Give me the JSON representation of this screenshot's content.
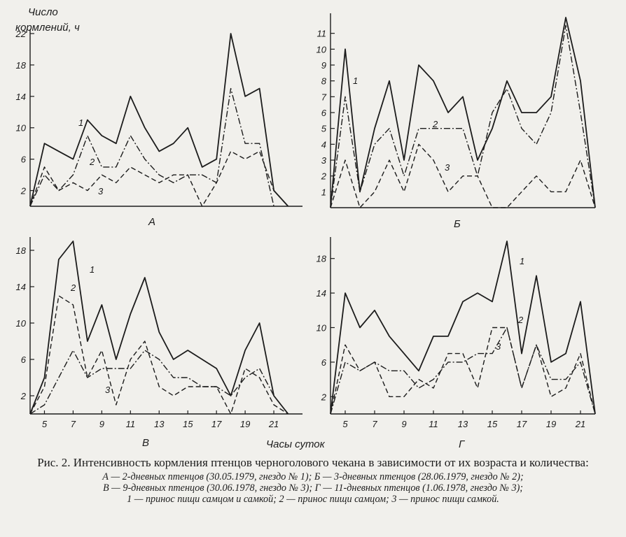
{
  "figure": {
    "y_axis_label_line1": "Число",
    "y_axis_label_line2": "кормлений, ч",
    "x_axis_label": "Часы суток",
    "caption_title": "Рис. 2. Интенсивность кормления птенцов черноголового чекана в зависимости от их возраста и количества:",
    "caption_lines": [
      "А — 2-дневных птенцов (30.05.1979, гнездо № 1); Б — 3-дневных птенцов (28.06.1979, гнездо № 2);",
      "В — 9-дневных птенцов (30.06.1978, гнездо № 3); Г — 11-дневных птенцов (1.06.1978, гнездо № 3);",
      "1 — принос пищи самцом и самкой; 2 — принос пищи самцом; 3 — принос пищи самкой."
    ]
  },
  "chart_data": [
    {
      "type": "line",
      "panel_label": "А",
      "ylim": [
        0,
        22
      ],
      "y_ticks": [
        "2",
        "6",
        "10",
        "14",
        "18",
        "22"
      ],
      "x_ticks": [],
      "x": [
        4,
        5,
        6,
        7,
        8,
        9,
        10,
        11,
        12,
        13,
        14,
        15,
        16,
        17,
        18,
        19,
        20,
        21,
        22,
        23
      ],
      "series": [
        {
          "name": "1",
          "style": "solid",
          "values": [
            0,
            8,
            7,
            6,
            11,
            9,
            8,
            14,
            10,
            7,
            8,
            10,
            5,
            6,
            22,
            14,
            15,
            2,
            0,
            null
          ]
        },
        {
          "name": "2",
          "style": "dashdot",
          "values": [
            0,
            4,
            2,
            4,
            9,
            5,
            5,
            9,
            6,
            4,
            3,
            4,
            4,
            3,
            15,
            8,
            8,
            0,
            null,
            null
          ]
        },
        {
          "name": "3",
          "style": "dashed",
          "values": [
            0,
            5,
            2,
            3,
            2,
            4,
            3,
            5,
            4,
            3,
            4,
            4,
            0,
            3,
            7,
            6,
            7,
            2,
            0,
            null
          ]
        }
      ]
    },
    {
      "type": "line",
      "panel_label": "Б",
      "ylim": [
        0,
        12
      ],
      "y_ticks": [
        "1",
        "2",
        "3",
        "4",
        "5",
        "6",
        "7",
        "8",
        "9",
        "10",
        "11"
      ],
      "x_ticks": [],
      "x": [
        4,
        5,
        6,
        7,
        8,
        9,
        10,
        11,
        12,
        13,
        14,
        15,
        16,
        17,
        18,
        19,
        20,
        21,
        22
      ],
      "series": [
        {
          "name": "1",
          "style": "solid",
          "values": [
            0,
            10,
            1,
            5,
            8,
            3,
            9,
            8,
            6,
            7,
            3,
            5,
            8,
            6,
            6,
            7,
            12,
            8,
            0
          ]
        },
        {
          "name": "2",
          "style": "dashdot",
          "values": [
            0,
            7,
            1,
            4,
            5,
            2,
            5,
            5,
            5,
            5,
            2,
            6,
            7.5,
            5,
            4,
            6,
            11.5,
            6,
            0
          ]
        },
        {
          "name": "3",
          "style": "dashed",
          "values": [
            0,
            3,
            0,
            1,
            3,
            1,
            4,
            3,
            1,
            2,
            2,
            0,
            0,
            1,
            2,
            1,
            1,
            3,
            0
          ]
        }
      ]
    },
    {
      "type": "line",
      "panel_label": "В",
      "ylim": [
        0,
        19
      ],
      "y_ticks": [
        "2",
        "6",
        "10",
        "14",
        "18"
      ],
      "x_ticks": [
        "5",
        "7",
        "9",
        "11",
        "13",
        "15",
        "17",
        "19",
        "21"
      ],
      "x": [
        4,
        5,
        6,
        7,
        8,
        9,
        10,
        11,
        12,
        13,
        14,
        15,
        16,
        17,
        18,
        19,
        20,
        21,
        22,
        23
      ],
      "series": [
        {
          "name": "1",
          "style": "solid",
          "values": [
            0,
            4,
            17,
            19,
            8,
            12,
            6,
            11,
            15,
            9,
            6,
            7,
            6,
            5,
            2,
            7,
            10,
            2,
            0,
            null
          ]
        },
        {
          "name": "2",
          "style": "dashdot",
          "values": [
            0,
            1,
            4,
            7,
            4,
            5,
            5,
            5,
            7,
            6,
            4,
            4,
            3,
            3,
            2,
            4,
            5,
            2,
            0,
            null
          ]
        },
        {
          "name": "3",
          "style": "dashed",
          "values": [
            0,
            3,
            13,
            12,
            4,
            7,
            1,
            6,
            8,
            3,
            2,
            3,
            3,
            3,
            0,
            5,
            4,
            1,
            0,
            null
          ]
        }
      ]
    },
    {
      "type": "line",
      "panel_label": "Г",
      "ylim": [
        0,
        20
      ],
      "y_ticks": [
        "2",
        "6",
        "10",
        "14",
        "18"
      ],
      "x_ticks": [
        "5",
        "7",
        "9",
        "11",
        "13",
        "15",
        "17",
        "19",
        "21"
      ],
      "x": [
        4,
        5,
        6,
        7,
        8,
        9,
        10,
        11,
        12,
        13,
        14,
        15,
        16,
        17,
        18,
        19,
        20,
        21,
        22
      ],
      "series": [
        {
          "name": "1",
          "style": "solid",
          "values": [
            0,
            14,
            10,
            12,
            9,
            7,
            5,
            9,
            9,
            13,
            14,
            13,
            20,
            7,
            16,
            6,
            7,
            13,
            0
          ]
        },
        {
          "name": "2",
          "style": "dashdot",
          "values": [
            0,
            6,
            5,
            6,
            5,
            5,
            3,
            4,
            6,
            6,
            7,
            7,
            10,
            3,
            8,
            4,
            4,
            6,
            0
          ]
        },
        {
          "name": "3",
          "style": "dashed",
          "values": [
            0,
            8,
            5,
            6,
            2,
            2,
            4,
            3,
            7,
            7,
            3,
            10,
            10,
            3,
            8,
            2,
            3,
            7,
            0
          ]
        }
      ]
    }
  ]
}
